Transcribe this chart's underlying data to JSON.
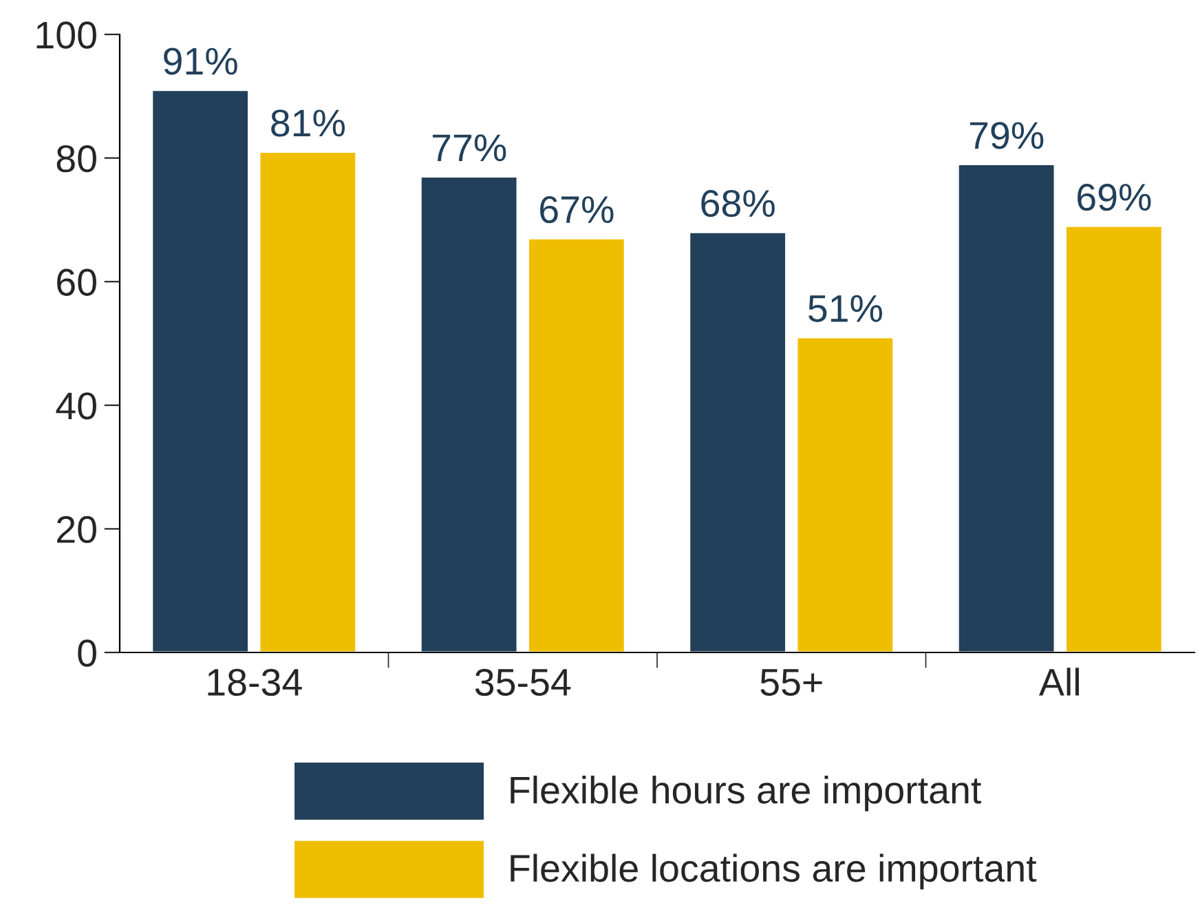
{
  "chart_data": {
    "type": "bar",
    "categories": [
      "18-34",
      "35-54",
      "55+",
      "All"
    ],
    "series": [
      {
        "name": "Flexible hours are important",
        "color": "#22405a",
        "values": [
          91,
          77,
          68,
          79
        ],
        "value_labels": [
          "91%",
          "77%",
          "68%",
          "79%"
        ]
      },
      {
        "name": "Flexible locations are important",
        "color": "#f0be00",
        "values": [
          81,
          67,
          51,
          69
        ],
        "value_labels": [
          "81%",
          "67%",
          "51%",
          "69%"
        ]
      }
    ],
    "ylim": [
      0,
      100
    ],
    "yticks": [
      0,
      20,
      40,
      60,
      80,
      100
    ],
    "grid": false,
    "legend": "bottom"
  }
}
